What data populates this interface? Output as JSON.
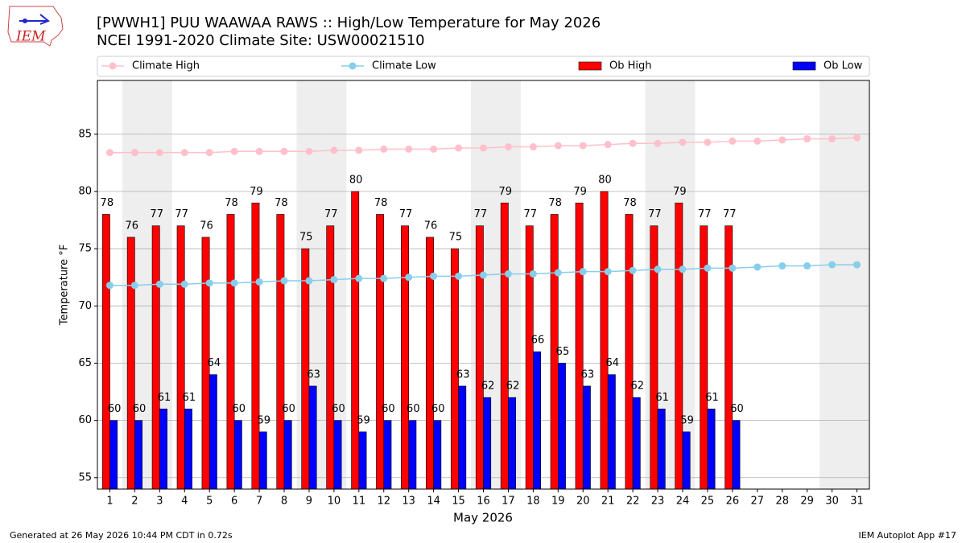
{
  "chart_data": {
    "type": "bar",
    "logo": "IEM",
    "title": "[PWWH1] PUU WAAWAA RAWS :: High/Low Temperature for May 2026",
    "subtitle": "NCEI 1991-2020 Climate Site: USW00021510",
    "x_label": "May 2026",
    "y_label": "Temperature °F",
    "footer_left": "Generated at 26 May 2026 10:44 PM CDT in 0.72s",
    "footer_right": "IEM Autoplot App #17",
    "x": [
      1,
      2,
      3,
      4,
      5,
      6,
      7,
      8,
      9,
      10,
      11,
      12,
      13,
      14,
      15,
      16,
      17,
      18,
      19,
      20,
      21,
      22,
      23,
      24,
      25,
      26,
      27,
      28,
      29,
      30,
      31
    ],
    "xlim": [
      0.5,
      31.5
    ],
    "xticks": [
      1,
      2,
      3,
      4,
      5,
      6,
      7,
      8,
      9,
      10,
      11,
      12,
      13,
      14,
      15,
      16,
      17,
      18,
      19,
      20,
      21,
      22,
      23,
      24,
      25,
      26,
      27,
      28,
      29,
      30,
      31
    ],
    "ylim": [
      54,
      89.7
    ],
    "yticks": [
      55,
      60,
      65,
      70,
      75,
      80,
      85
    ],
    "grid": true,
    "weekend_days": [
      2,
      3,
      9,
      10,
      16,
      17,
      23,
      24,
      30,
      31
    ],
    "series": [
      {
        "name": "Climate High",
        "type": "line",
        "color": "#ffc0cb",
        "values": [
          83.4,
          83.4,
          83.4,
          83.4,
          83.4,
          83.5,
          83.5,
          83.5,
          83.5,
          83.6,
          83.6,
          83.7,
          83.7,
          83.7,
          83.8,
          83.8,
          83.9,
          83.9,
          84.0,
          84.0,
          84.1,
          84.2,
          84.2,
          84.3,
          84.3,
          84.4,
          84.4,
          84.5,
          84.6,
          84.6,
          84.7
        ]
      },
      {
        "name": "Climate Low",
        "type": "line",
        "color": "#87ceeb",
        "values": [
          71.8,
          71.8,
          71.9,
          71.9,
          72.0,
          72.0,
          72.1,
          72.2,
          72.2,
          72.3,
          72.4,
          72.4,
          72.5,
          72.6,
          72.6,
          72.7,
          72.8,
          72.8,
          72.9,
          73.0,
          73.0,
          73.1,
          73.2,
          73.2,
          73.3,
          73.3,
          73.4,
          73.5,
          73.5,
          73.6,
          73.6
        ]
      },
      {
        "name": "Ob High",
        "type": "bar",
        "color": "#ff0000",
        "values": [
          78,
          76,
          77,
          77,
          76,
          78,
          79,
          78,
          75,
          77,
          80,
          78,
          77,
          76,
          75,
          77,
          79,
          77,
          78,
          79,
          80,
          78,
          77,
          79,
          77,
          77,
          null,
          null,
          null,
          null,
          null
        ]
      },
      {
        "name": "Ob Low",
        "type": "bar",
        "color": "#0000ff",
        "values": [
          60,
          60,
          61,
          61,
          64,
          60,
          59,
          60,
          63,
          60,
          59,
          60,
          60,
          60,
          63,
          62,
          62,
          66,
          65,
          63,
          64,
          62,
          61,
          59,
          61,
          60,
          null,
          null,
          null,
          null,
          null
        ]
      }
    ]
  }
}
